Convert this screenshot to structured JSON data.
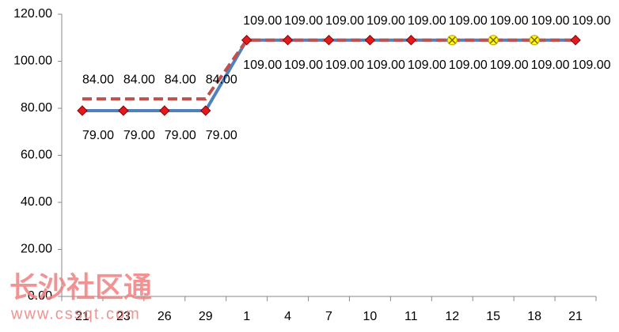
{
  "chart_data": {
    "type": "line",
    "categories": [
      "21",
      "23",
      "26",
      "29",
      "1",
      "4",
      "7",
      "10",
      "11",
      "12",
      "15",
      "18",
      "21"
    ],
    "series": [
      {
        "color": "#4f81bd",
        "dash": false,
        "label_side": "below",
        "values": [
          79,
          79,
          79,
          79,
          109,
          109,
          109,
          109,
          109,
          109,
          109,
          109,
          109
        ],
        "value_labels": [
          "79.00",
          "79.00",
          "79.00",
          "79.00",
          "109.00",
          "109.00",
          "109.00",
          "109.00",
          "109.00",
          "109.00",
          "109.00",
          "109.00",
          "109.00"
        ],
        "marker_colors": [
          "#e31a1c",
          "#e31a1c",
          "#e31a1c",
          "#e31a1c",
          "#e31a1c",
          "#e31a1c",
          "#e31a1c",
          "#e31a1c",
          "#e31a1c",
          "#ffff00",
          "#ffff00",
          "#ffff00",
          "#e31a1c"
        ]
      },
      {
        "color": "#c0504d",
        "dash": true,
        "label_side": "above",
        "values": [
          84,
          84,
          84,
          84,
          109,
          109,
          109,
          109,
          109,
          109,
          109,
          109,
          109
        ],
        "value_labels": [
          "84.00",
          "84.00",
          "84.00",
          "84.00",
          "109.00",
          "109.00",
          "109.00",
          "109.00",
          "109.00",
          "109.00",
          "109.00",
          "109.00",
          "109.00"
        ]
      }
    ],
    "ylim": [
      0,
      120
    ],
    "yticks": [
      {
        "value": 0,
        "label": "0.00"
      },
      {
        "value": 20,
        "label": "20.00"
      },
      {
        "value": 40,
        "label": "40.00"
      },
      {
        "value": 60,
        "label": "60.00"
      },
      {
        "value": 80,
        "label": "80.00"
      },
      {
        "value": 100,
        "label": "100.00"
      },
      {
        "value": 120,
        "label": "120.00"
      }
    ],
    "grid": false
  },
  "watermark": {
    "title": "长沙社区通",
    "url": "www.cssqt.com"
  }
}
